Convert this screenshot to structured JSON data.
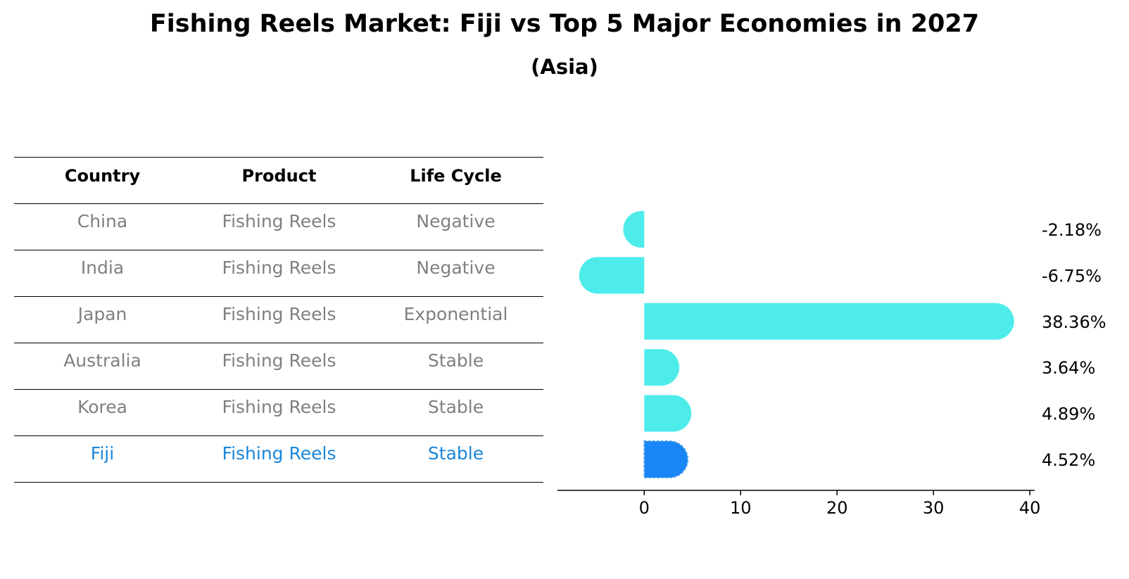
{
  "title": "Fishing Reels Market: Fiji vs Top 5 Major Economies in 2027",
  "subtitle": "(Asia)",
  "table": {
    "headers": [
      "Country",
      "Product",
      "Life Cycle"
    ],
    "rows": [
      {
        "country": "China",
        "product": "Fishing Reels",
        "life_cycle": "Negative"
      },
      {
        "country": "India",
        "product": "Fishing Reels",
        "life_cycle": "Negative"
      },
      {
        "country": "Japan",
        "product": "Fishing Reels",
        "life_cycle": "Exponential"
      },
      {
        "country": "Australia",
        "product": "Fishing Reels",
        "life_cycle": "Stable"
      },
      {
        "country": "Korea",
        "product": "Fishing Reels",
        "life_cycle": "Stable"
      },
      {
        "country": "Fiji",
        "product": "Fishing Reels",
        "life_cycle": "Stable"
      }
    ]
  },
  "chart_data": {
    "type": "bar",
    "orientation": "horizontal",
    "categories": [
      "China",
      "India",
      "Japan",
      "Australia",
      "Korea",
      "Fiji"
    ],
    "values": [
      -2.18,
      -6.75,
      38.36,
      3.64,
      4.89,
      4.52
    ],
    "value_labels": [
      "-2.18%",
      "-6.75%",
      "38.36%",
      "3.64%",
      "4.89%",
      "4.52%"
    ],
    "xlim": [
      -9,
      40.5
    ],
    "xticks": [
      0,
      10,
      20,
      30,
      40
    ],
    "grid": false,
    "highlight_category": "Fiji",
    "colors": {
      "default": "#4deceb",
      "highlight": "#1a86f5",
      "highlight_text": "#1a86d9",
      "muted_text": "#808080"
    }
  }
}
